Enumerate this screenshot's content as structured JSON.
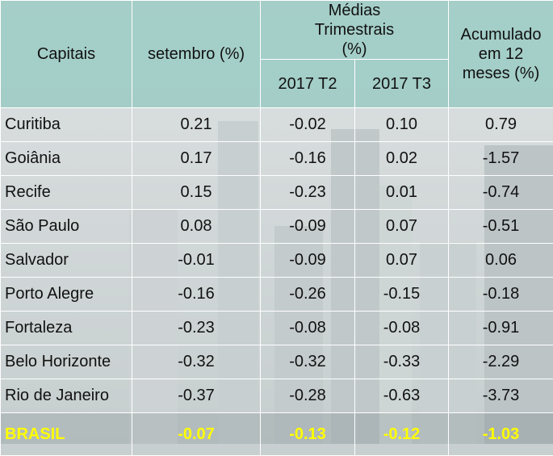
{
  "table": {
    "header": {
      "capitais": "Capitais",
      "setembro": "setembro (%)",
      "medias": "Médias Trimestrais (%)",
      "t2": "2017 T2",
      "t3": "2017 T3",
      "acumulado": "Acumulado em 12 meses (%)"
    },
    "rows": [
      [
        "Curitiba",
        "0.21",
        "-0.02",
        "0.10",
        "0.79"
      ],
      [
        "Goiânia",
        "0.17",
        "-0.16",
        "0.02",
        "-1.57"
      ],
      [
        "Recife",
        "0.15",
        "-0.23",
        "0.01",
        "-0.74"
      ],
      [
        "São Paulo",
        "0.08",
        "-0.09",
        "0.07",
        "-0.51"
      ],
      [
        "Salvador",
        "-0.01",
        "-0.09",
        "0.07",
        "0.06"
      ],
      [
        "Porto Alegre",
        "-0.16",
        "-0.26",
        "-0.15",
        "-0.18"
      ],
      [
        "Fortaleza",
        "-0.23",
        "-0.08",
        "-0.08",
        "-0.91"
      ],
      [
        "Belo Horizonte",
        "-0.32",
        "-0.32",
        "-0.33",
        "-2.29"
      ],
      [
        "Rio de Janeiro",
        "-0.37",
        "-0.28",
        "-0.63",
        "-3.73"
      ],
      [
        "BRASIL",
        "-0.07",
        "-0.13",
        "-0.12",
        "-1.03"
      ]
    ]
  }
}
